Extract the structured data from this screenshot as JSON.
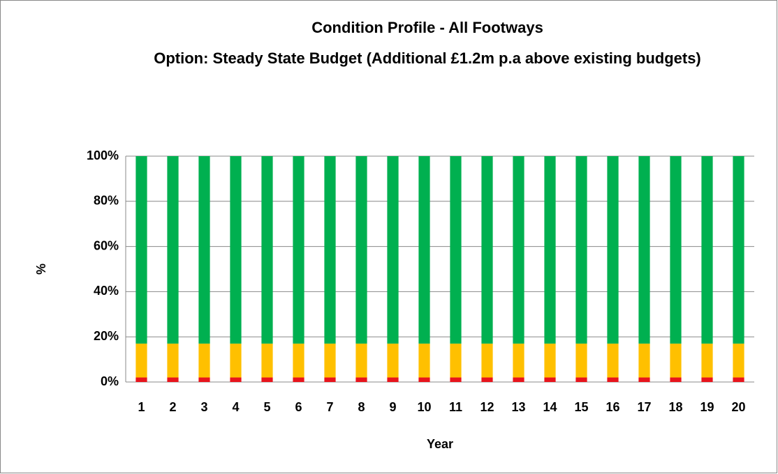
{
  "chart_data": {
    "type": "stacked_bar",
    "title": "Condition Profile - All Footways",
    "subtitle": "Option: Steady State Budget (Additional £1.2m p.a above existing budgets)",
    "x_label": "Year",
    "y_label": "%",
    "categories": [
      "1",
      "2",
      "3",
      "4",
      "5",
      "6",
      "7",
      "8",
      "9",
      "10",
      "11",
      "12",
      "13",
      "14",
      "15",
      "16",
      "17",
      "18",
      "19",
      "20"
    ],
    "series": [
      {
        "color": "#e8141c",
        "values": [
          2,
          2,
          2,
          2,
          2,
          2,
          2,
          2,
          2,
          2,
          2,
          2,
          2,
          2,
          2,
          2,
          2,
          2,
          2,
          2
        ]
      },
      {
        "color": "#ffc000",
        "values": [
          15,
          15,
          15,
          15,
          15,
          15,
          15,
          15,
          15,
          15,
          15,
          15,
          15,
          15,
          15,
          15,
          15,
          15,
          15,
          15
        ]
      },
      {
        "color": "#00b050",
        "values": [
          83,
          83,
          83,
          83,
          83,
          83,
          83,
          83,
          83,
          83,
          83,
          83,
          83,
          83,
          83,
          83,
          83,
          83,
          83,
          83
        ]
      }
    ],
    "ylim": [
      0,
      100
    ],
    "yticks": [
      {
        "value": 0,
        "label": "0%"
      },
      {
        "value": 20,
        "label": "20%"
      },
      {
        "value": 40,
        "label": "40%"
      },
      {
        "value": 60,
        "label": "60%"
      },
      {
        "value": 80,
        "label": "80%"
      },
      {
        "value": 100,
        "label": "100%"
      }
    ],
    "grid": true
  }
}
